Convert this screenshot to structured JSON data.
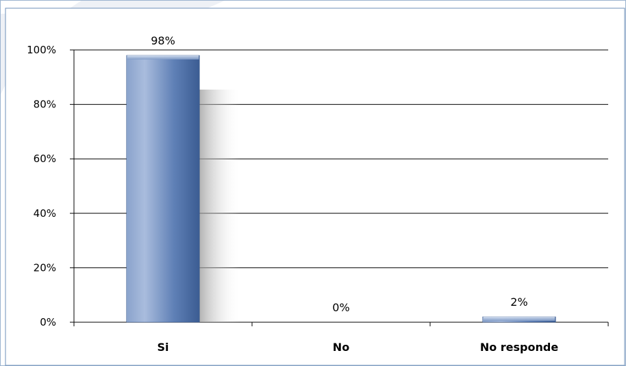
{
  "chart_data": {
    "type": "bar",
    "categories": [
      "Si",
      "No",
      "No responde"
    ],
    "values": [
      98,
      0,
      2
    ],
    "value_labels": [
      "98%",
      "0%",
      "2%"
    ],
    "title": "",
    "xlabel": "",
    "ylabel": "",
    "ylim": [
      0,
      100
    ],
    "yticks": [
      0,
      20,
      40,
      60,
      80,
      100
    ],
    "ytick_labels": [
      "0%",
      "20%",
      "40%",
      "60%",
      "80%",
      "100%"
    ],
    "grid": true,
    "legend": "none",
    "bar_color": "#4a6fa5",
    "bar_color_light": "#a6bbdc",
    "bar_color_dark": "#2f4f85"
  }
}
